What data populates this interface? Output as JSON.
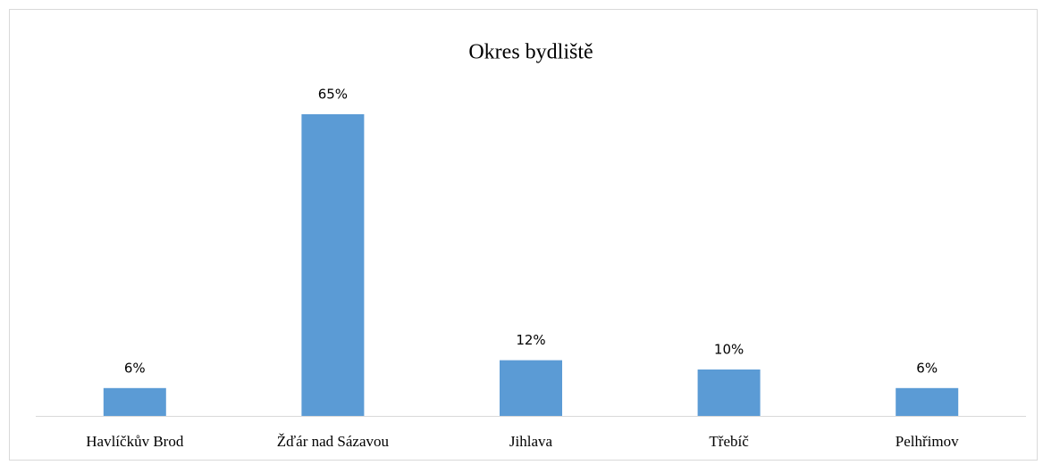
{
  "chart_data": {
    "type": "bar",
    "title": "Okres bydliště",
    "categories": [
      "Havlíčkův Brod",
      "Žďár nad Sázavou",
      "Jihlava",
      "Třebíč",
      "Pelhřimov"
    ],
    "values": [
      6,
      65,
      12,
      10,
      6
    ],
    "value_labels": [
      "6%",
      "65%",
      "12%",
      "10%",
      "6%"
    ],
    "color": "#5b9bd5"
  }
}
